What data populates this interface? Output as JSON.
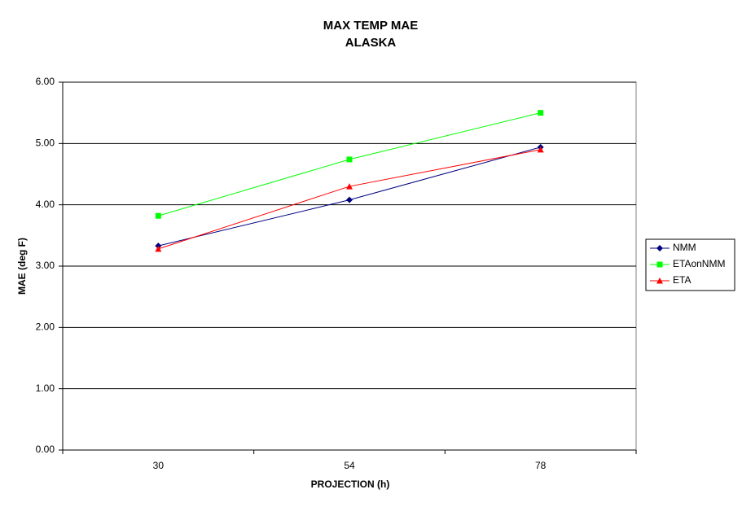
{
  "chart_data": {
    "type": "line",
    "title": "MAX TEMP MAE",
    "subtitle": "ALASKA",
    "x_label": "PROJECTION (h)",
    "y_label": "MAE (deg F)",
    "categories": [
      "30",
      "54",
      "78"
    ],
    "series": [
      {
        "name": "NMM",
        "color": "#000080",
        "marker": "diamond",
        "values": [
          3.33,
          4.08,
          4.94
        ]
      },
      {
        "name": "ETAonNMM",
        "color": "#00ff00",
        "marker": "square",
        "values": [
          3.82,
          4.74,
          5.5
        ]
      },
      {
        "name": "ETA",
        "color": "#ff0000",
        "marker": "triangle",
        "values": [
          3.28,
          4.3,
          4.9
        ]
      }
    ],
    "ylim": [
      0,
      6
    ],
    "yticks": [
      {
        "value": 0,
        "label": "0.00"
      },
      {
        "value": 1,
        "label": "1.00"
      },
      {
        "value": 2,
        "label": "2.00"
      },
      {
        "value": 3,
        "label": "3.00"
      },
      {
        "value": 4,
        "label": "4.00"
      },
      {
        "value": 5,
        "label": "5.00"
      },
      {
        "value": 6,
        "label": "6.00"
      }
    ],
    "grid": true,
    "legend": "right"
  }
}
